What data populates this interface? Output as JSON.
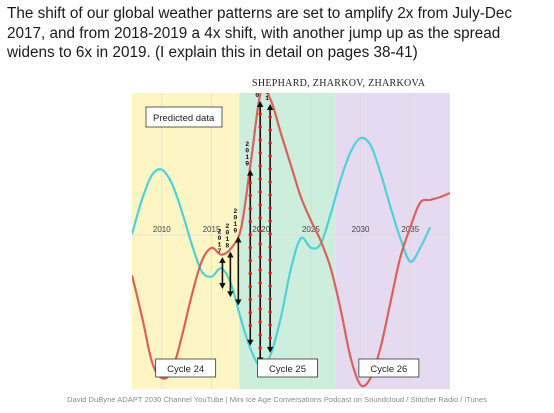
{
  "caption": "The shift of our global weather patterns are set to amplify 2x from July-Dec 2017, and from 2018-2019 a 4x shift, with another jump up as the spread widens to 6x in 2019. (I explain this in detail on pages 38-41)",
  "authors": "SHEPHARD, ZHARKOV, ZHARKOVA",
  "footer": "David DuByne ADAPT 2030 Channel YouTube | Mini Ice Age Conversations Podcast on Soundcloud / Stitcher Radio / iTunes",
  "colors": {
    "cycle24_bg": "#fdf6c4",
    "cycle25_bg": "#cdeedd",
    "cycle26_bg": "#e6daf1",
    "cyan_line": "#4fd1d9",
    "red_line": "#d8625c",
    "marker": "#e01818",
    "arrow": "#111111",
    "grid": "#d8d8d8"
  },
  "chart_data": {
    "type": "line",
    "title": "Predicted data",
    "x_ticks": [
      2010,
      2015,
      2020,
      2025,
      2030,
      2035
    ],
    "xlim": [
      2007,
      2039
    ],
    "ylim": [
      -1.05,
      1.05
    ],
    "grid": true,
    "regions": [
      {
        "label": "Cycle 24",
        "from": 2007,
        "to": 2017.8
      },
      {
        "label": "Cycle 25",
        "from": 2017.8,
        "to": 2027.5
      },
      {
        "label": "Cycle 26",
        "from": 2027.5,
        "to": 2039
      }
    ],
    "series": [
      {
        "color": "cyan",
        "x": [
          2007,
          2008,
          2009,
          2010,
          2011,
          2012,
          2013,
          2014,
          2015,
          2016,
          2017,
          2018,
          2019,
          2020,
          2021,
          2022,
          2023,
          2024,
          2025,
          2026,
          2027,
          2028,
          2029,
          2030,
          2031,
          2032,
          2033,
          2034,
          2035,
          2036,
          2037
        ],
        "y": [
          0.05,
          0.3,
          0.48,
          0.52,
          0.42,
          0.22,
          -0.02,
          -0.22,
          -0.26,
          -0.2,
          -0.32,
          -0.58,
          -0.8,
          -0.92,
          -0.82,
          -0.55,
          -0.2,
          0.02,
          -0.05,
          -0.02,
          0.2,
          0.45,
          0.65,
          0.75,
          0.7,
          0.5,
          0.25,
          0.02,
          -0.15,
          -0.05,
          0.1
        ]
      },
      {
        "color": "red",
        "x": [
          2007,
          2008,
          2009,
          2010,
          2011,
          2012,
          2013,
          2014,
          2015,
          2016,
          2017,
          2018,
          2019,
          2020,
          2021,
          2022,
          2023,
          2024,
          2025,
          2026,
          2027,
          2028,
          2029,
          2030,
          2031,
          2032,
          2033,
          2034,
          2035,
          2036,
          2037,
          2038,
          2039
        ],
        "y": [
          -0.25,
          -0.55,
          -0.88,
          -1.0,
          -0.95,
          -0.7,
          -0.4,
          -0.15,
          -0.05,
          -0.1,
          -0.05,
          0.1,
          0.6,
          1.1,
          1.02,
          0.78,
          0.55,
          0.32,
          0.15,
          0.0,
          -0.2,
          -0.5,
          -0.85,
          -1.05,
          -1.0,
          -0.78,
          -0.45,
          -0.12,
          0.1,
          0.28,
          0.3,
          0.32,
          0.35
        ]
      }
    ],
    "arrows": [
      {
        "x": 2016.1,
        "label": "2017"
      },
      {
        "x": 2016.9,
        "label": "2018"
      },
      {
        "x": 2017.7,
        "label": "2019"
      },
      {
        "x": 2018.9,
        "label": "2019"
      },
      {
        "x": 2019.9,
        "label": "2020"
      },
      {
        "x": 2020.9,
        "label": "2021"
      }
    ]
  }
}
